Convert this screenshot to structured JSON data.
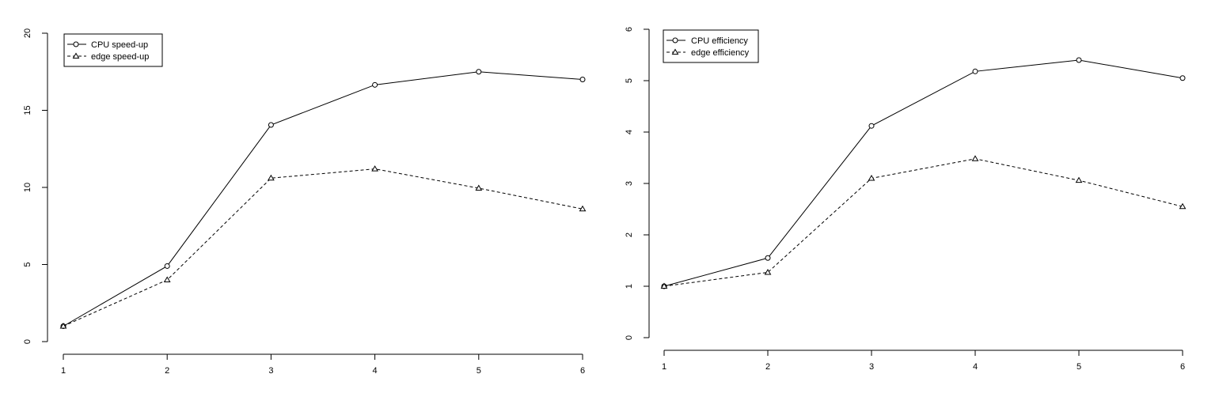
{
  "chart_data": [
    {
      "type": "line",
      "x": [
        1,
        2,
        3,
        4,
        5,
        6
      ],
      "xticks": [
        "1",
        "2",
        "3",
        "4",
        "5",
        "6"
      ],
      "yticks": [
        "0",
        "5",
        "10",
        "15",
        "20"
      ],
      "ylim": [
        0,
        20
      ],
      "grid": false,
      "legend_position": "top-left",
      "series": [
        {
          "name": "CPU speed-up",
          "values": [
            1.0,
            4.9,
            14.05,
            16.65,
            17.5,
            17.0
          ],
          "marker": "circle",
          "line": "solid"
        },
        {
          "name": "edge speed-up",
          "values": [
            1.0,
            4.0,
            10.6,
            11.2,
            9.95,
            8.6
          ],
          "marker": "triangle",
          "line": "dashed"
        }
      ]
    },
    {
      "type": "line",
      "x": [
        1,
        2,
        3,
        4,
        5,
        6
      ],
      "xticks": [
        "1",
        "2",
        "3",
        "4",
        "5",
        "6"
      ],
      "yticks": [
        "0",
        "1",
        "2",
        "3",
        "4",
        "5",
        "6"
      ],
      "ylim": [
        0,
        6
      ],
      "grid": false,
      "legend_position": "top-left",
      "series": [
        {
          "name": "CPU efficiency",
          "values": [
            1.0,
            1.55,
            4.12,
            5.18,
            5.4,
            5.05
          ],
          "marker": "circle",
          "line": "solid"
        },
        {
          "name": "edge efficiency",
          "values": [
            1.0,
            1.27,
            3.1,
            3.48,
            3.06,
            2.55
          ],
          "marker": "triangle",
          "line": "dashed"
        }
      ]
    }
  ]
}
